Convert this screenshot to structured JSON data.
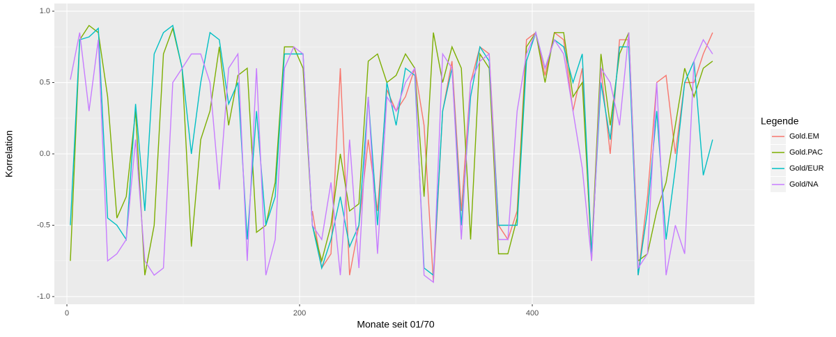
{
  "chart_data": {
    "type": "line",
    "xlabel": "Monate seit 01/70",
    "ylabel": "Korrelation",
    "legend_title": "Legende",
    "x": [
      3,
      11,
      19,
      27,
      35,
      43,
      51,
      59,
      67,
      75,
      83,
      91,
      99,
      107,
      115,
      123,
      131,
      139,
      147,
      155,
      163,
      171,
      179,
      187,
      195,
      203,
      211,
      219,
      227,
      235,
      243,
      251,
      259,
      267,
      275,
      283,
      291,
      299,
      307,
      315,
      323,
      331,
      339,
      347,
      355,
      363,
      371,
      379,
      387,
      395,
      403,
      411,
      419,
      427,
      435,
      443,
      451,
      459,
      467,
      475,
      483,
      491,
      499,
      507,
      515,
      523,
      531,
      539,
      547,
      555
    ],
    "series": [
      {
        "name": "Gold.EM",
        "color": "#f8766d",
        "values": [
          null,
          null,
          null,
          null,
          null,
          null,
          null,
          null,
          null,
          null,
          null,
          null,
          null,
          null,
          null,
          null,
          null,
          null,
          null,
          null,
          null,
          null,
          null,
          null,
          null,
          null,
          -0.4,
          -0.8,
          -0.7,
          0.6,
          -0.85,
          -0.5,
          0.1,
          -0.4,
          0.45,
          0.3,
          0.4,
          0.6,
          0.2,
          -0.9,
          0.3,
          0.65,
          -0.4,
          0.5,
          0.75,
          0.7,
          -0.5,
          -0.6,
          -0.4,
          0.8,
          0.85,
          0.55,
          0.85,
          0.8,
          0.3,
          0.6,
          -0.75,
          0.6,
          0.0,
          0.8,
          0.8,
          -0.85,
          -0.3,
          0.5,
          0.55,
          0.0,
          0.5,
          0.5,
          0.7,
          0.85
        ]
      },
      {
        "name": "Gold.PAC",
        "color": "#7cae00",
        "values": [
          -0.75,
          0.8,
          0.9,
          0.85,
          0.4,
          -0.45,
          -0.3,
          0.3,
          -0.85,
          -0.5,
          0.7,
          0.88,
          0.6,
          -0.65,
          0.1,
          0.3,
          0.75,
          0.2,
          0.55,
          0.6,
          -0.55,
          -0.5,
          -0.2,
          0.75,
          0.75,
          0.6,
          -0.5,
          -0.75,
          -0.5,
          0.0,
          -0.4,
          -0.35,
          0.65,
          0.7,
          0.5,
          0.55,
          0.7,
          0.6,
          -0.3,
          0.85,
          0.5,
          0.75,
          0.6,
          -0.6,
          0.7,
          0.6,
          -0.7,
          -0.7,
          -0.45,
          0.75,
          0.85,
          0.5,
          0.85,
          0.85,
          0.4,
          0.5,
          -0.7,
          0.7,
          0.2,
          0.7,
          0.85,
          -0.75,
          -0.7,
          -0.4,
          -0.2,
          0.2,
          0.6,
          0.4,
          0.6,
          0.65
        ]
      },
      {
        "name": "Gold/EUR",
        "color": "#00bfc4",
        "values": [
          -0.5,
          0.8,
          0.82,
          0.88,
          -0.45,
          -0.5,
          -0.6,
          0.35,
          -0.4,
          0.7,
          0.85,
          0.9,
          0.6,
          0.0,
          0.5,
          0.85,
          0.8,
          0.35,
          0.5,
          -0.6,
          0.3,
          -0.5,
          -0.3,
          0.7,
          0.7,
          0.7,
          -0.5,
          -0.8,
          -0.6,
          -0.3,
          -0.65,
          -0.5,
          0.4,
          -0.5,
          0.5,
          0.2,
          0.6,
          0.55,
          -0.8,
          -0.85,
          0.3,
          0.6,
          -0.5,
          0.4,
          0.75,
          0.65,
          -0.5,
          -0.5,
          -0.5,
          0.65,
          0.85,
          0.6,
          0.8,
          0.75,
          0.5,
          0.7,
          -0.7,
          0.5,
          0.1,
          0.75,
          0.75,
          -0.85,
          -0.4,
          0.3,
          -0.6,
          -0.1,
          0.5,
          0.65,
          -0.15,
          0.1
        ]
      },
      {
        "name": "Gold/NA",
        "color": "#c77cff",
        "values": [
          0.52,
          0.85,
          0.3,
          0.8,
          -0.75,
          -0.7,
          -0.6,
          0.1,
          -0.75,
          -0.85,
          -0.8,
          0.5,
          0.6,
          0.7,
          0.7,
          0.5,
          -0.25,
          0.6,
          0.7,
          -0.75,
          0.6,
          -0.85,
          -0.6,
          0.6,
          0.75,
          0.7,
          -0.5,
          -0.6,
          -0.2,
          -0.85,
          0.1,
          -0.8,
          0.4,
          -0.7,
          0.4,
          0.3,
          0.5,
          0.6,
          -0.85,
          -0.9,
          0.7,
          0.6,
          -0.6,
          0.5,
          0.65,
          0.7,
          -0.6,
          -0.6,
          0.3,
          0.7,
          0.85,
          0.6,
          0.8,
          0.7,
          0.3,
          -0.1,
          -0.75,
          0.6,
          0.5,
          0.2,
          0.85,
          -0.8,
          -0.7,
          0.5,
          -0.85,
          -0.5,
          -0.7,
          0.65,
          0.8,
          0.7
        ]
      }
    ],
    "xlim": [
      -10.8,
      591
    ],
    "ylim": [
      -1.054,
      1.054
    ],
    "xticks": [
      0,
      200,
      400
    ],
    "yticks": [
      {
        "value": -1.0,
        "label": "-1.0"
      },
      -0.5,
      {
        "value": 0.0,
        "label": "0.0"
      },
      0.5,
      {
        "value": 1.0,
        "label": "1.0"
      }
    ],
    "grid": true,
    "legend": "right"
  }
}
